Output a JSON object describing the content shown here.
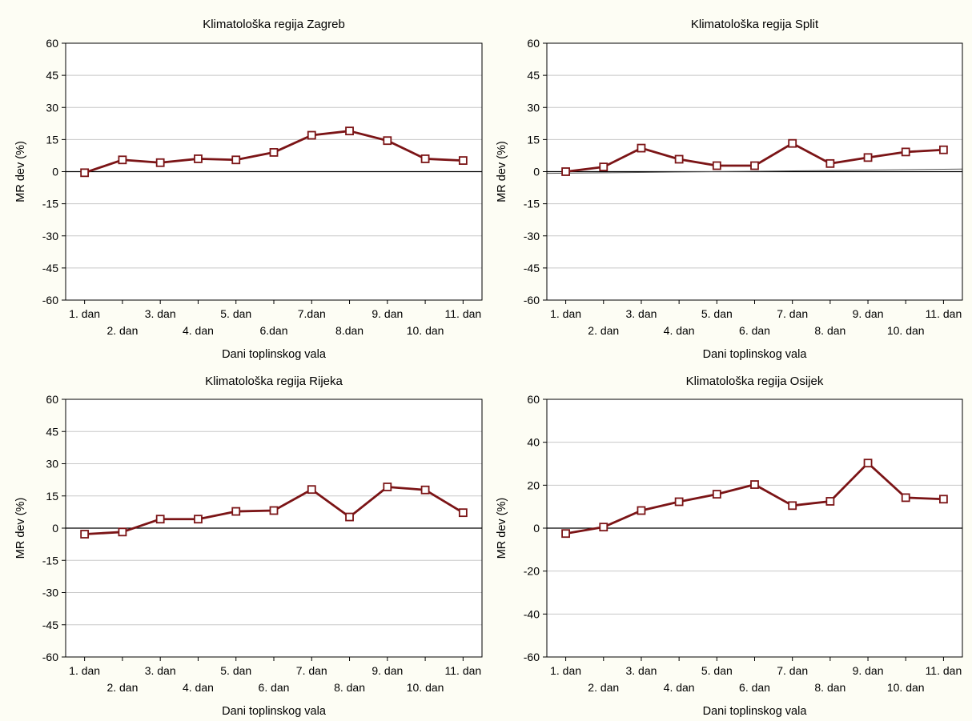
{
  "chart_data": [
    {
      "type": "line",
      "title": "Klimatološka regija Zagreb",
      "xlabel": "Dani toplinskog vala",
      "ylabel": "MR dev (%)",
      "categories": [
        "1. dan",
        "2. dan",
        "3. dan",
        "4. dan",
        "5. dan",
        "6.dan",
        "7.dan",
        "8.dan",
        "9. dan",
        "10. dan",
        "11. dan"
      ],
      "values": [
        -0.5,
        5.5,
        4.2,
        6.0,
        5.5,
        9.0,
        17.0,
        19.0,
        14.5,
        6.0,
        5.2
      ],
      "yticks": [
        60,
        45,
        30,
        15,
        0,
        -15,
        -30,
        -45,
        -60
      ],
      "ylim": [
        -60,
        60
      ],
      "grid": true,
      "trend": null
    },
    {
      "type": "line",
      "title": "Klimatološka regija Split",
      "xlabel": "Dani toplinskog vala",
      "ylabel": "MR dev (%)",
      "categories": [
        "1. dan",
        "2. dan",
        "3. dan",
        "4. dan",
        "5. dan",
        "6. dan",
        "7. dan",
        "8. dan",
        "9. dan",
        "10. dan",
        "11. dan"
      ],
      "values": [
        0.0,
        2.2,
        11.0,
        5.8,
        2.8,
        2.8,
        13.2,
        3.8,
        6.6,
        9.2,
        10.2
      ],
      "yticks": [
        60,
        45,
        30,
        15,
        0,
        -15,
        -30,
        -45,
        -60
      ],
      "ylim": [
        -60,
        60
      ],
      "grid": true,
      "trend": [
        -0.8,
        1.2
      ]
    },
    {
      "type": "line",
      "title": "Klimatološka regija Rijeka",
      "xlabel": "Dani toplinskog vala",
      "ylabel": "MR dev (%)",
      "categories": [
        "1. dan",
        "2. dan",
        "3. dan",
        "4. dan",
        "5. dan",
        "6. dan",
        "7. dan",
        "8. dan",
        "9. dan",
        "10. dan",
        "11. dan"
      ],
      "values": [
        -2.8,
        -1.8,
        4.2,
        4.2,
        7.8,
        8.2,
        18.0,
        5.2,
        19.2,
        17.8,
        7.2
      ],
      "yticks": [
        60,
        45,
        30,
        15,
        0,
        -15,
        -30,
        -45,
        -60
      ],
      "ylim": [
        -60,
        60
      ],
      "grid": true,
      "trend": null
    },
    {
      "type": "line",
      "title": "Klimatološka regija Osijek",
      "xlabel": "Dani toplinskog vala",
      "ylabel": "MR dev (%)",
      "categories": [
        "1. dan",
        "2. dan",
        "3. dan",
        "4. dan",
        "5. dan",
        "6. dan",
        "7. dan",
        "8. dan",
        "9. dan",
        "10. dan",
        "11. dan"
      ],
      "values": [
        -2.5,
        0.5,
        8.2,
        12.3,
        15.8,
        20.3,
        10.5,
        12.5,
        30.3,
        14.2,
        13.5
      ],
      "yticks": [
        60,
        40,
        20,
        0,
        -20,
        -40,
        -60
      ],
      "ylim": [
        -60,
        60
      ],
      "grid": true,
      "trend": null
    }
  ],
  "colors": {
    "line": "#7b1416",
    "marker_fill": "#ffffff",
    "grid": "#c8c8c8",
    "zero_line": "#000000",
    "trend_line": "#555555",
    "plot_bg": "#ffffff",
    "page_bg": "#fdfdf4"
  }
}
